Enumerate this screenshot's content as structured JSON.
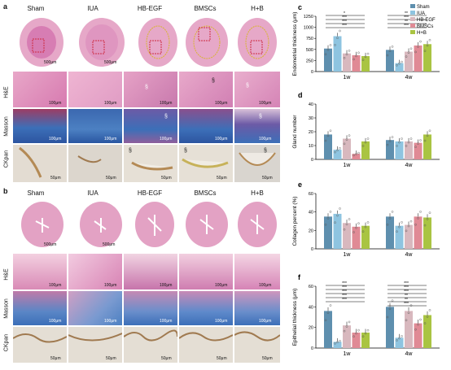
{
  "panels": {
    "a": {
      "label": "a",
      "columns": [
        "Sham",
        "IUA",
        "HB-EGF",
        "BMSCs",
        "H+B"
      ],
      "rows": [
        "H&E",
        "Masson",
        "CKpan"
      ],
      "scale_whole": "500μm",
      "scale_he": "100μm",
      "scale_masson": "100μm",
      "scale_ck": "50μm",
      "section_mark": "§"
    },
    "b": {
      "label": "b",
      "columns": [
        "Sham",
        "IUA",
        "HB-EGF",
        "BMSCs",
        "H+B"
      ],
      "rows": [
        "H&E",
        "Masson",
        "CKpan"
      ],
      "scale_whole": "500μm",
      "scale_he": "100μm",
      "scale_masson": "100μm",
      "scale_ck": "50μm"
    }
  },
  "legend": {
    "items": [
      {
        "name": "Sham",
        "color": "#5e8fae"
      },
      {
        "name": "IUA",
        "color": "#8ec4e0"
      },
      {
        "name": "HB-EGF",
        "color": "#d8b8be"
      },
      {
        "name": "BMSCs",
        "color": "#e08a95"
      },
      {
        "name": "H+B",
        "color": "#a9c442"
      }
    ]
  },
  "chart_data": [
    {
      "panel": "c",
      "type": "bar",
      "ylabel": "Endometrial thickness (μm)",
      "categories": [
        "1w",
        "4w"
      ],
      "ylim": [
        0,
        1250
      ],
      "yticks": [
        0,
        250,
        500,
        750,
        1000,
        1250
      ],
      "series": [
        {
          "name": "Sham",
          "values": [
            520,
            490
          ]
        },
        {
          "name": "IUA",
          "values": [
            800,
            190
          ]
        },
        {
          "name": "HB-EGF",
          "values": [
            410,
            450
          ]
        },
        {
          "name": "BMSCs",
          "values": [
            370,
            590
          ]
        },
        {
          "name": "H+B",
          "values": [
            350,
            620
          ]
        }
      ],
      "sig": {
        "1w": [
          "*",
          "***",
          "***",
          "***"
        ],
        "4w": [
          "**",
          "***",
          "**",
          "***"
        ]
      }
    },
    {
      "panel": "d",
      "type": "bar",
      "ylabel": "Gland number",
      "categories": [
        "1w",
        "4w"
      ],
      "ylim": [
        0,
        40
      ],
      "yticks": [
        0,
        10,
        20,
        30,
        40
      ],
      "series": [
        {
          "name": "Sham",
          "values": [
            18,
            14
          ]
        },
        {
          "name": "IUA",
          "values": [
            7,
            13
          ]
        },
        {
          "name": "HB-EGF",
          "values": [
            15,
            13
          ]
        },
        {
          "name": "BMSCs",
          "values": [
            4,
            12
          ]
        },
        {
          "name": "H+B",
          "values": [
            13,
            18
          ]
        }
      ]
    },
    {
      "panel": "e",
      "type": "bar",
      "ylabel": "Collagen percent (%)",
      "categories": [
        "1w",
        "4w"
      ],
      "ylim": [
        0,
        60
      ],
      "yticks": [
        0,
        20,
        40,
        60
      ],
      "series": [
        {
          "name": "Sham",
          "values": [
            35,
            35
          ]
        },
        {
          "name": "IUA",
          "values": [
            38,
            25
          ]
        },
        {
          "name": "HB-EGF",
          "values": [
            28,
            26
          ]
        },
        {
          "name": "BMSCs",
          "values": [
            24,
            35
          ]
        },
        {
          "name": "H+B",
          "values": [
            25,
            34
          ]
        }
      ]
    },
    {
      "panel": "f",
      "type": "bar",
      "ylabel": "Epithelial thickness (μm)",
      "categories": [
        "1w",
        "4w"
      ],
      "ylim": [
        0,
        60
      ],
      "yticks": [
        0,
        20,
        40,
        60
      ],
      "series": [
        {
          "name": "Sham",
          "values": [
            36,
            40
          ]
        },
        {
          "name": "IUA",
          "values": [
            6,
            10
          ]
        },
        {
          "name": "HB-EGF",
          "values": [
            22,
            36
          ]
        },
        {
          "name": "BMSCs",
          "values": [
            15,
            24
          ]
        },
        {
          "name": "H+B",
          "values": [
            15,
            32
          ]
        }
      ],
      "sig": {
        "1w": [
          "***",
          "***",
          "***",
          "***",
          "***"
        ],
        "4w": [
          "***",
          "***",
          "***",
          "**",
          "**",
          "***"
        ]
      }
    }
  ]
}
